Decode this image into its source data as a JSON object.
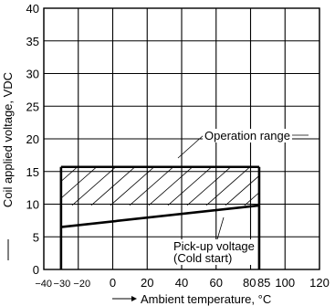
{
  "chart_data": {
    "type": "line",
    "xlabel": "Ambient temperature, °C",
    "ylabel": "Coil applied voltage, VDC",
    "xlim": [
      -40,
      120
    ],
    "ylim": [
      0,
      40
    ],
    "grid": true,
    "x_ticks": [
      {
        "value": -40,
        "label": "−40"
      },
      {
        "value": -30,
        "label": "−30"
      },
      {
        "value": -20,
        "label": "−20"
      },
      {
        "value": 0,
        "label": "0"
      },
      {
        "value": 20,
        "label": "20"
      },
      {
        "value": 40,
        "label": "40"
      },
      {
        "value": 60,
        "label": "60"
      },
      {
        "value": 80,
        "label": "80"
      },
      {
        "value": 85,
        "label": "85"
      },
      {
        "value": 100,
        "label": "100"
      },
      {
        "value": 120,
        "label": "120"
      }
    ],
    "y_ticks": [
      {
        "value": 0,
        "label": "0"
      },
      {
        "value": 5,
        "label": "5"
      },
      {
        "value": 10,
        "label": "10"
      },
      {
        "value": 15,
        "label": "15"
      },
      {
        "value": 20,
        "label": "20"
      },
      {
        "value": 25,
        "label": "25"
      },
      {
        "value": 30,
        "label": "30"
      },
      {
        "value": 35,
        "label": "35"
      },
      {
        "value": 40,
        "label": "40"
      }
    ],
    "operation_range": {
      "label": "Operation range",
      "x_min": -30,
      "x_max": 85,
      "y_max": 15.7,
      "y_hatch_min": 9.8
    },
    "pickup_voltage": {
      "label_line1": "Pick-up voltage",
      "label_line2": "(Cold start)",
      "x": [
        -30,
        85
      ],
      "y": [
        6.5,
        9.8
      ]
    }
  }
}
